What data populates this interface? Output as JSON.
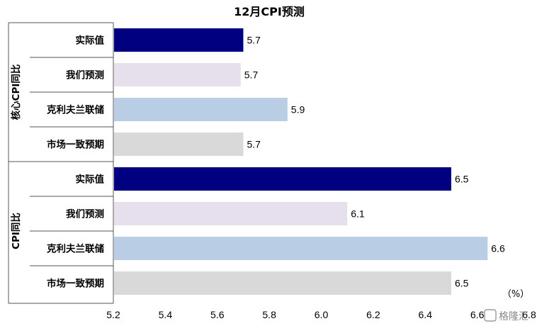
{
  "chart_data": {
    "type": "bar",
    "orientation": "horizontal",
    "title": "12月CPI预测",
    "unit_label": "（%）",
    "xlim": [
      5.2,
      6.8
    ],
    "x_ticks": [
      "5.2",
      "5.4",
      "5.6",
      "5.8",
      "6.0",
      "6.2",
      "6.4",
      "6.6",
      "6.8"
    ],
    "groups": [
      {
        "label": "核心CPI同比",
        "bars": [
          {
            "label": "实际值",
            "value": 5.7,
            "value_label": "5.7",
            "color": "#000080"
          },
          {
            "label": "我们预测",
            "value": 5.69,
            "value_label": "5.7",
            "color": "#E6E0EC"
          },
          {
            "label": "克利夫兰联储",
            "value": 5.87,
            "value_label": "5.9",
            "color": "#B9CDE5"
          },
          {
            "label": "市场一致预期",
            "value": 5.7,
            "value_label": "5.7",
            "color": "#D9D9D9"
          }
        ]
      },
      {
        "label": "CPI同比",
        "bars": [
          {
            "label": "实际值",
            "value": 6.5,
            "value_label": "6.5",
            "color": "#000080"
          },
          {
            "label": "我们预测",
            "value": 6.1,
            "value_label": "6.1",
            "color": "#E6E0EC"
          },
          {
            "label": "克利夫兰联储",
            "value": 6.64,
            "value_label": "6.6",
            "color": "#B9CDE5"
          },
          {
            "label": "市场一致预期",
            "value": 6.5,
            "value_label": "6.5",
            "color": "#D9D9D9"
          }
        ]
      }
    ],
    "grid": false,
    "legend": "none"
  },
  "watermark": {
    "text": "格隆汇",
    "icon": "logo-icon"
  }
}
